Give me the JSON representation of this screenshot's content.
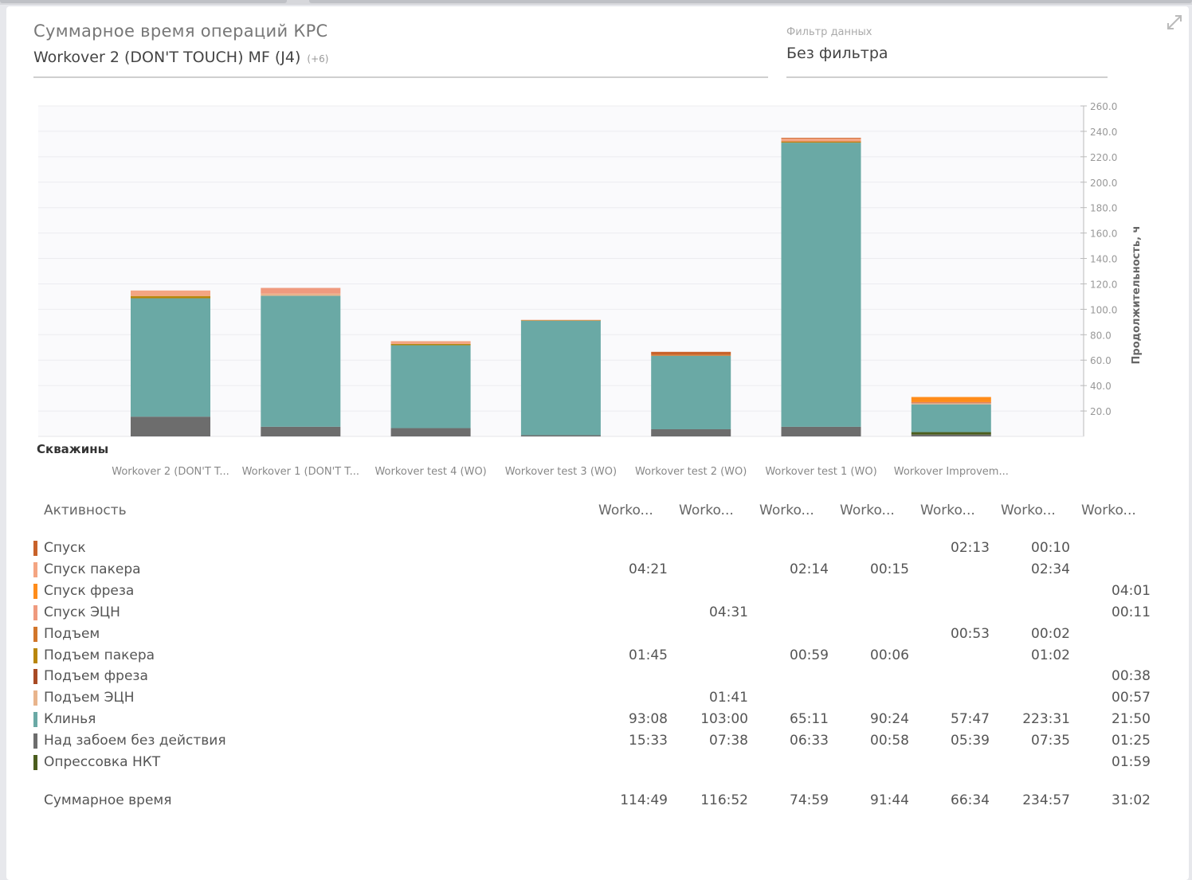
{
  "header": {
    "title": "Суммарное время операций КРС",
    "subtitle": "Workover 2 (DON'T TOUCH) MF (J4)",
    "subtitle_more": "(+6)"
  },
  "filter": {
    "label": "Фильтр данных",
    "value": "Без фильтра"
  },
  "icons": {
    "expand": "expand-icon"
  },
  "chart_data": {
    "type": "bar",
    "stacked": true,
    "xlabel": "Скважины",
    "ylabel": "Продолжительность, ч",
    "ylim": [
      0,
      260
    ],
    "yticks": [
      "20.0",
      "40.0",
      "60.0",
      "80.0",
      "100.0",
      "120.0",
      "140.0",
      "160.0",
      "180.0",
      "200.0",
      "220.0",
      "240.0",
      "260.0"
    ],
    "grid": true,
    "categories": [
      "Workover 2 (DON'T T...",
      "Workover 1 (DON'T T...",
      "Workover test 4 (WO)",
      "Workover test 3 (WO)",
      "Workover test 2 (WO)",
      "Workover test 1 (WO)",
      "Workover Improvem..."
    ],
    "series": [
      {
        "name": "Над забоем без действия",
        "color": "#6d6d6d",
        "values": [
          15.55,
          7.63,
          6.55,
          0.97,
          5.65,
          7.58,
          1.42
        ]
      },
      {
        "name": "Опрессовка НКТ",
        "color": "#4b5d1e",
        "values": [
          0,
          0,
          0,
          0,
          0,
          0,
          1.98
        ]
      },
      {
        "name": "Клинья",
        "color": "#6aa9a5",
        "values": [
          93.13,
          103.0,
          65.18,
          90.4,
          57.78,
          223.52,
          21.83
        ]
      },
      {
        "name": "Подъем пакера",
        "color": "#b8860b",
        "values": [
          1.75,
          0,
          0.98,
          0.1,
          0,
          1.03,
          0
        ]
      },
      {
        "name": "Подъем ЭЦН",
        "color": "#e8b48c",
        "values": [
          0,
          1.68,
          0,
          0,
          0,
          0,
          0.95
        ]
      },
      {
        "name": "Подъем",
        "color": "#d2762a",
        "values": [
          0,
          0,
          0,
          0,
          0.88,
          0.03,
          0
        ]
      },
      {
        "name": "Подъем фреза",
        "color": "#a84a24",
        "values": [
          0,
          0,
          0,
          0,
          0,
          0,
          0.63
        ]
      },
      {
        "name": "Спуск пакера",
        "color": "#f4a582",
        "values": [
          4.35,
          0,
          2.23,
          0.25,
          0,
          2.57,
          0
        ]
      },
      {
        "name": "Спуск ЭЦН",
        "color": "#ef9a7e",
        "values": [
          0,
          4.52,
          0,
          0,
          0,
          0,
          0.18
        ]
      },
      {
        "name": "Спуск",
        "color": "#c8622a",
        "values": [
          0,
          0,
          0,
          0,
          2.22,
          0.17,
          0
        ]
      },
      {
        "name": "Спуск фреза",
        "color": "#ff8c1a",
        "values": [
          0,
          0,
          0,
          0,
          0,
          0,
          4.02
        ]
      }
    ]
  },
  "table": {
    "header_label": "Активность",
    "columns": [
      "Worko...",
      "Worko...",
      "Worko...",
      "Worko...",
      "Worko...",
      "Worko...",
      "Worko..."
    ],
    "rows": [
      {
        "label": "Спуск",
        "color": "#c8622a",
        "values": [
          "",
          "",
          "",
          "",
          "02:13",
          "00:10",
          ""
        ]
      },
      {
        "label": "Спуск пакера",
        "color": "#f4a582",
        "values": [
          "04:21",
          "",
          "02:14",
          "00:15",
          "",
          "02:34",
          ""
        ]
      },
      {
        "label": "Спуск фреза",
        "color": "#ff8c1a",
        "values": [
          "",
          "",
          "",
          "",
          "",
          "",
          "04:01"
        ]
      },
      {
        "label": "Спуск ЭЦН",
        "color": "#ef9a7e",
        "values": [
          "",
          "04:31",
          "",
          "",
          "",
          "",
          "00:11"
        ]
      },
      {
        "label": "Подъем",
        "color": "#d2762a",
        "values": [
          "",
          "",
          "",
          "",
          "00:53",
          "00:02",
          ""
        ]
      },
      {
        "label": "Подъем пакера",
        "color": "#b8860b",
        "values": [
          "01:45",
          "",
          "00:59",
          "00:06",
          "",
          "01:02",
          ""
        ]
      },
      {
        "label": "Подъем фреза",
        "color": "#a84a24",
        "values": [
          "",
          "",
          "",
          "",
          "",
          "",
          "00:38"
        ]
      },
      {
        "label": "Подъем ЭЦН",
        "color": "#e8b48c",
        "values": [
          "",
          "01:41",
          "",
          "",
          "",
          "",
          "00:57"
        ]
      },
      {
        "label": "Клинья",
        "color": "#6aa9a5",
        "values": [
          "93:08",
          "103:00",
          "65:11",
          "90:24",
          "57:47",
          "223:31",
          "21:50"
        ]
      },
      {
        "label": "Над забоем без действия",
        "color": "#6d6d6d",
        "values": [
          "15:33",
          "07:38",
          "06:33",
          "00:58",
          "05:39",
          "07:35",
          "01:25"
        ]
      },
      {
        "label": "Опрессовка НКТ",
        "color": "#4b5d1e",
        "values": [
          "",
          "",
          "",
          "",
          "",
          "",
          "01:59"
        ]
      }
    ],
    "total_label": "Суммарное время",
    "totals": [
      "114:49",
      "116:52",
      "74:59",
      "91:44",
      "66:34",
      "234:57",
      "31:02"
    ]
  }
}
